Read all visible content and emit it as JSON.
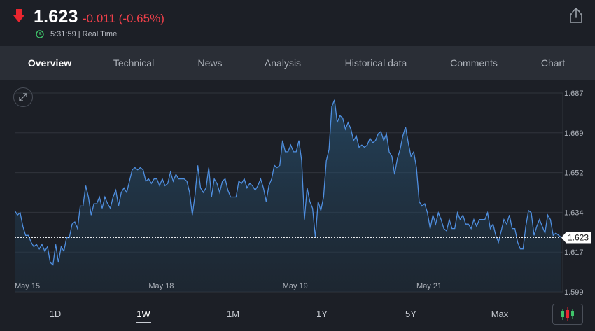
{
  "quote": {
    "price": "1.623",
    "change": "-0.011 (-0.65%)",
    "time": "5:31:59 | Real Time",
    "direction": "down",
    "down_color": "#f0404a"
  },
  "icons": {
    "direction": "arrow-down-icon",
    "clock": "clock-icon",
    "share": "share-icon",
    "expand": "expand-icon",
    "candles": "candlestick-icon"
  },
  "tabs": [
    {
      "label": "Overview",
      "active": true
    },
    {
      "label": "Technical",
      "active": false
    },
    {
      "label": "News",
      "active": false
    },
    {
      "label": "Analysis",
      "active": false
    },
    {
      "label": "Historical data",
      "active": false
    },
    {
      "label": "Comments",
      "active": false
    },
    {
      "label": "Chart",
      "active": false
    }
  ],
  "ranges": [
    {
      "label": "1D",
      "active": false
    },
    {
      "label": "1W",
      "active": true
    },
    {
      "label": "1M",
      "active": false
    },
    {
      "label": "1Y",
      "active": false
    },
    {
      "label": "5Y",
      "active": false
    },
    {
      "label": "Max",
      "active": false
    }
  ],
  "chart_data": {
    "type": "area",
    "line_color": "#4f8fe0",
    "y_ticks": [
      "1.687",
      "1.669",
      "1.652",
      "1.634",
      "1.617",
      "1.599"
    ],
    "ylim": [
      1.599,
      1.687
    ],
    "x_labels": [
      {
        "label": "May 15",
        "pos": 0
      },
      {
        "label": "May 18",
        "pos": 49
      },
      {
        "label": "May 19",
        "pos": 98
      },
      {
        "label": "May 21",
        "pos": 147
      }
    ],
    "current_value": "1.623",
    "grid": true,
    "values": [
      1.635,
      1.633,
      1.634,
      1.628,
      1.624,
      1.624,
      1.621,
      1.619,
      1.62,
      1.618,
      1.62,
      1.617,
      1.619,
      1.612,
      1.611,
      1.62,
      1.612,
      1.619,
      1.617,
      1.623,
      1.623,
      1.629,
      1.63,
      1.627,
      1.637,
      1.637,
      1.646,
      1.641,
      1.633,
      1.638,
      1.638,
      1.641,
      1.636,
      1.641,
      1.638,
      1.636,
      1.641,
      1.644,
      1.637,
      1.643,
      1.645,
      1.643,
      1.648,
      1.653,
      1.654,
      1.653,
      1.654,
      1.653,
      1.648,
      1.649,
      1.647,
      1.649,
      1.649,
      1.646,
      1.649,
      1.646,
      1.647,
      1.652,
      1.648,
      1.651,
      1.649,
      1.649,
      1.649,
      1.648,
      1.643,
      1.633,
      1.642,
      1.655,
      1.645,
      1.643,
      1.645,
      1.654,
      1.641,
      1.649,
      1.647,
      1.643,
      1.648,
      1.649,
      1.644,
      1.641,
      1.641,
      1.641,
      1.648,
      1.647,
      1.649,
      1.645,
      1.647,
      1.646,
      1.644,
      1.646,
      1.649,
      1.645,
      1.639,
      1.646,
      1.649,
      1.655,
      1.654,
      1.655,
      1.666,
      1.661,
      1.661,
      1.664,
      1.661,
      1.661,
      1.666,
      1.657,
      1.631,
      1.645,
      1.639,
      1.636,
      1.623,
      1.639,
      1.635,
      1.641,
      1.657,
      1.662,
      1.681,
      1.684,
      1.674,
      1.677,
      1.676,
      1.671,
      1.674,
      1.671,
      1.666,
      1.668,
      1.663,
      1.664,
      1.663,
      1.664,
      1.667,
      1.665,
      1.666,
      1.669,
      1.67,
      1.666,
      1.669,
      1.661,
      1.659,
      1.651,
      1.658,
      1.662,
      1.668,
      1.672,
      1.665,
      1.659,
      1.661,
      1.654,
      1.639,
      1.637,
      1.638,
      1.634,
      1.627,
      1.633,
      1.629,
      1.634,
      1.631,
      1.627,
      1.626,
      1.631,
      1.627,
      1.627,
      1.634,
      1.631,
      1.633,
      1.629,
      1.629,
      1.627,
      1.631,
      1.628,
      1.631,
      1.631,
      1.631,
      1.634,
      1.627,
      1.629,
      1.624,
      1.621,
      1.626,
      1.631,
      1.629,
      1.633,
      1.627,
      1.627,
      1.621,
      1.618,
      1.618,
      1.628,
      1.635,
      1.634,
      1.624,
      1.628,
      1.631,
      1.628,
      1.625,
      1.633,
      1.631,
      1.624,
      1.625,
      1.624,
      1.623
    ]
  }
}
